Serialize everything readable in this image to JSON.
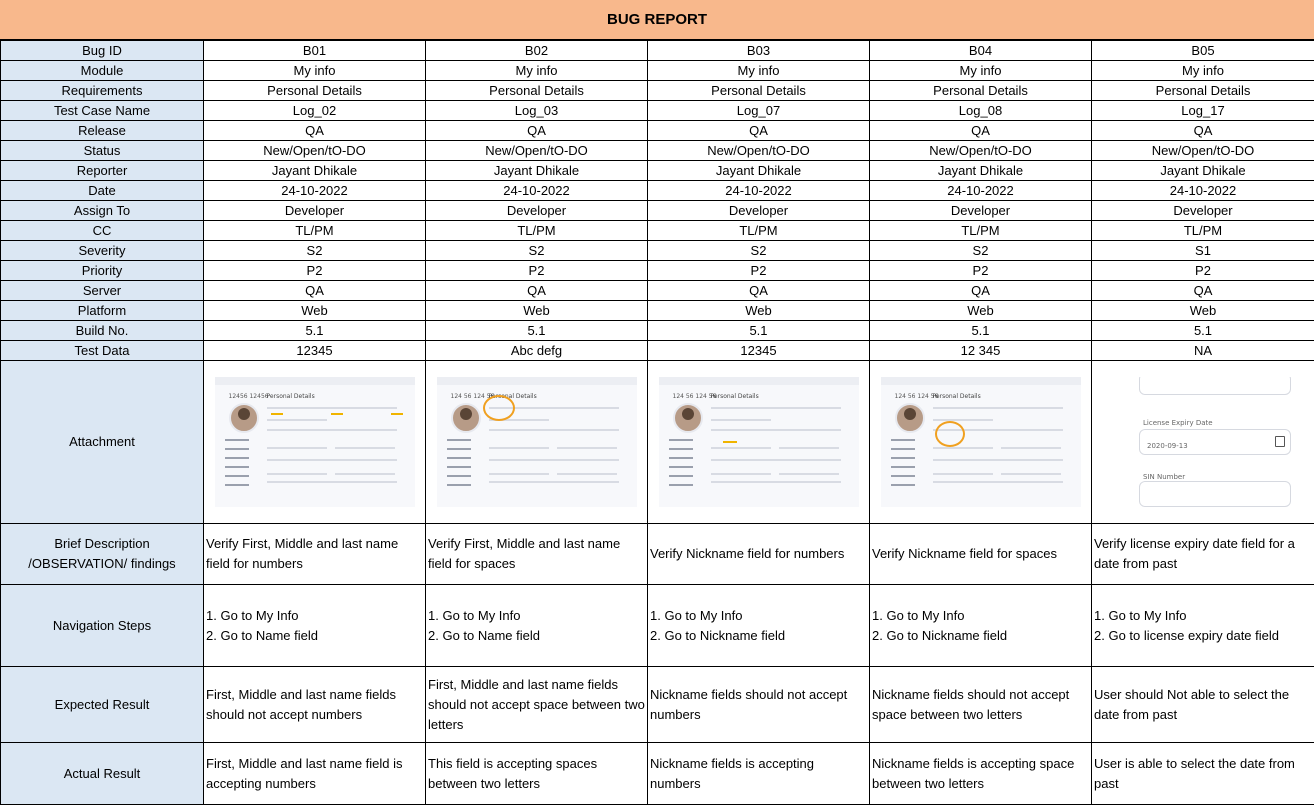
{
  "title": "BUG REPORT",
  "bugs": [
    "B01",
    "B02",
    "B03",
    "B04",
    "B05"
  ],
  "rows": [
    {
      "label": "Bug ID",
      "values": [
        "B01",
        "B02",
        "B03",
        "B04",
        "B05"
      ]
    },
    {
      "label": "Module",
      "values": [
        "My info",
        "My info",
        "My info",
        "My info",
        "My info"
      ]
    },
    {
      "label": "Requirements",
      "values": [
        "Personal Details",
        "Personal Details",
        "Personal Details",
        "Personal Details",
        "Personal Details"
      ]
    },
    {
      "label": "Test Case Name",
      "values": [
        "Log_02",
        "Log_03",
        "Log_07",
        "Log_08",
        "Log_17"
      ]
    },
    {
      "label": "Release",
      "values": [
        "QA",
        "QA",
        "QA",
        "QA",
        "QA"
      ]
    },
    {
      "label": "Status",
      "values": [
        "New/Open/tO-DO",
        "New/Open/tO-DO",
        "New/Open/tO-DO",
        "New/Open/tO-DO",
        "New/Open/tO-DO"
      ]
    },
    {
      "label": "Reporter",
      "values": [
        "Jayant Dhikale",
        "Jayant Dhikale",
        "Jayant Dhikale",
        "Jayant Dhikale",
        "Jayant Dhikale"
      ]
    },
    {
      "label": "Date",
      "values": [
        "24-10-2022",
        "24-10-2022",
        "24-10-2022",
        "24-10-2022",
        "24-10-2022"
      ]
    },
    {
      "label": "Assign To",
      "values": [
        "Developer",
        "Developer",
        "Developer",
        "Developer",
        "Developer"
      ]
    },
    {
      "label": "CC",
      "values": [
        "TL/PM",
        "TL/PM",
        "TL/PM",
        "TL/PM",
        "TL/PM"
      ]
    },
    {
      "label": "Severity",
      "values": [
        "S2",
        "S2",
        "S2",
        "S2",
        "S1"
      ]
    },
    {
      "label": "Priority",
      "values": [
        "P2",
        "P2",
        "P2",
        "P2",
        "P2"
      ]
    },
    {
      "label": "Server",
      "values": [
        "QA",
        "QA",
        "QA",
        "QA",
        "QA"
      ]
    },
    {
      "label": "Platform",
      "values": [
        "Web",
        "Web",
        "Web",
        "Web",
        "Web"
      ]
    },
    {
      "label": "Build No.",
      "values": [
        "5.1",
        "5.1",
        "5.1",
        "5.1",
        "5.1"
      ]
    },
    {
      "label": "Test Data",
      "values": [
        "12345",
        "Abc  defg",
        "12345",
        "12  345",
        "NA"
      ]
    }
  ],
  "attachment": {
    "label": "Attachment",
    "thumbs": [
      {
        "kind": "name-form",
        "name_text": "12456 12456",
        "heading": "Personal Details"
      },
      {
        "kind": "name-form",
        "name_text": "124 56 124 56",
        "heading": "Personal Details"
      },
      {
        "kind": "name-form",
        "name_text": "124 56 124 56",
        "heading": "Personal Details"
      },
      {
        "kind": "name-form",
        "name_text": "124 56 124 56",
        "heading": "Personal Details"
      },
      {
        "kind": "license",
        "field_label": "License Expiry Date",
        "date_value": "2020-09-13",
        "sin_label": "SIN Number"
      }
    ]
  },
  "text_rows": [
    {
      "key": "desc",
      "label": "Brief Description\n/OBSERVATION/ findings",
      "values": [
        "Verify First, Middle and last name field for numbers",
        "Verify First, Middle and last name field for spaces",
        "Verify Nickname field for numbers",
        "Verify Nickname field for spaces",
        "Verify license expiry date field for  a  date from past"
      ]
    },
    {
      "key": "nav",
      "label": "Navigation Steps",
      "values": [
        "1. Go to My Info\n2. Go to Name field",
        "1. Go to My Info\n2. Go to Name field",
        "1. Go to My Info\n2. Go to Nickname field",
        "1. Go to My Info\n2. Go to Nickname field",
        "1. Go to My Info\n2. Go to license expiry date field"
      ]
    },
    {
      "key": "exp",
      "label": "Expected Result",
      "values": [
        "First, Middle and last name fields should not accept numbers",
        "First, Middle and last name fields should not accept space between two letters",
        "Nickname fields should not accept numbers",
        "Nickname fields should not accept space between two letters",
        "User should Not able to select the date from past"
      ]
    },
    {
      "key": "act",
      "label": "Actual Result",
      "values": [
        "First, Middle and last name field is accepting numbers",
        "This field is accepting spaces between two letters",
        "Nickname fields is accepting numbers",
        "Nickname fields is accepting space between two letters",
        "User is able to select the date from past"
      ]
    }
  ]
}
